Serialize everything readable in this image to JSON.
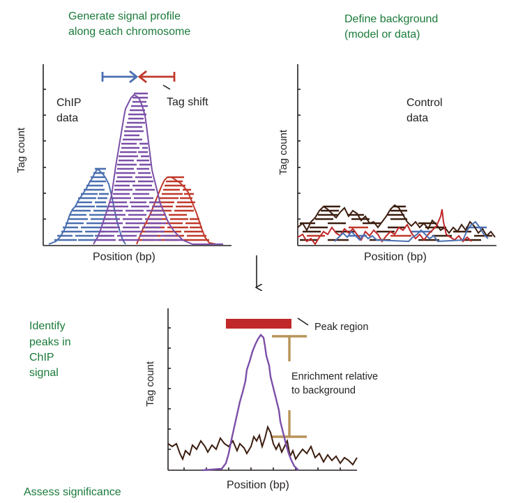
{
  "steps": {
    "step1_line1": "Generate signal profile",
    "step1_line2": "along each chromosome",
    "step2_line1": "Define background",
    "step2_line2": "(model or data)",
    "step3_line1": "Identify",
    "step3_line2": "peaks in",
    "step3_line3": "ChIP",
    "step3_line4": "signal",
    "step4": "Assess significance"
  },
  "chip_panel": {
    "label_line1": "ChIP",
    "label_line2": "data",
    "tag_shift": "Tag shift",
    "ylabel": "Tag count",
    "xlabel": "Position (bp)"
  },
  "control_panel": {
    "label_line1": "Control",
    "label_line2": "data",
    "ylabel": "Tag count",
    "xlabel": "Position (bp)"
  },
  "peak_panel": {
    "peak_region": "Peak region",
    "enrichment_line1": "Enrichment relative",
    "enrichment_line2": "to background",
    "ylabel": "Tag count",
    "xlabel": "Position (bp)"
  },
  "colors": {
    "green_text": "#1a7a3a",
    "blue": "#4a6fb0",
    "purple": "#7b4fa8",
    "red": "#c0392b",
    "brown": "#4a2a1a",
    "tan": "#b8935a",
    "peak_bar": "#c0282a"
  }
}
